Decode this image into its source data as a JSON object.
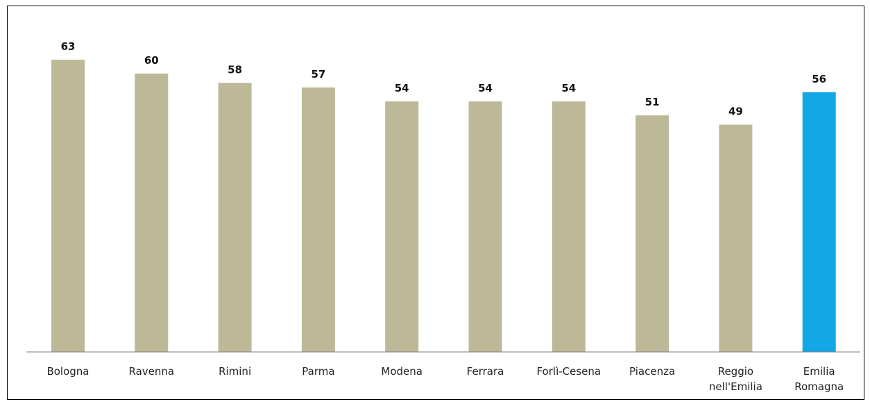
{
  "chart_data": {
    "type": "bar",
    "title": "",
    "xlabel": "",
    "ylabel": "",
    "ylim": [
      0,
      63
    ],
    "grid": false,
    "legend": "none",
    "categories": [
      [
        "Bologna"
      ],
      [
        "Ravenna"
      ],
      [
        "Rimini"
      ],
      [
        "Parma"
      ],
      [
        "Modena"
      ],
      [
        "Ferrara"
      ],
      [
        "Forlì-Cesena"
      ],
      [
        "Piacenza"
      ],
      [
        "Reggio",
        "nell'Emilia"
      ],
      [
        "Emilia",
        "Romagna"
      ]
    ],
    "values": [
      63,
      60,
      58,
      57,
      54,
      54,
      54,
      51,
      49,
      56
    ],
    "highlight_index": 9,
    "colors": {
      "bar": "#bdb898",
      "highlight": "#13a7e8",
      "axis": "#7f7f7f"
    }
  }
}
